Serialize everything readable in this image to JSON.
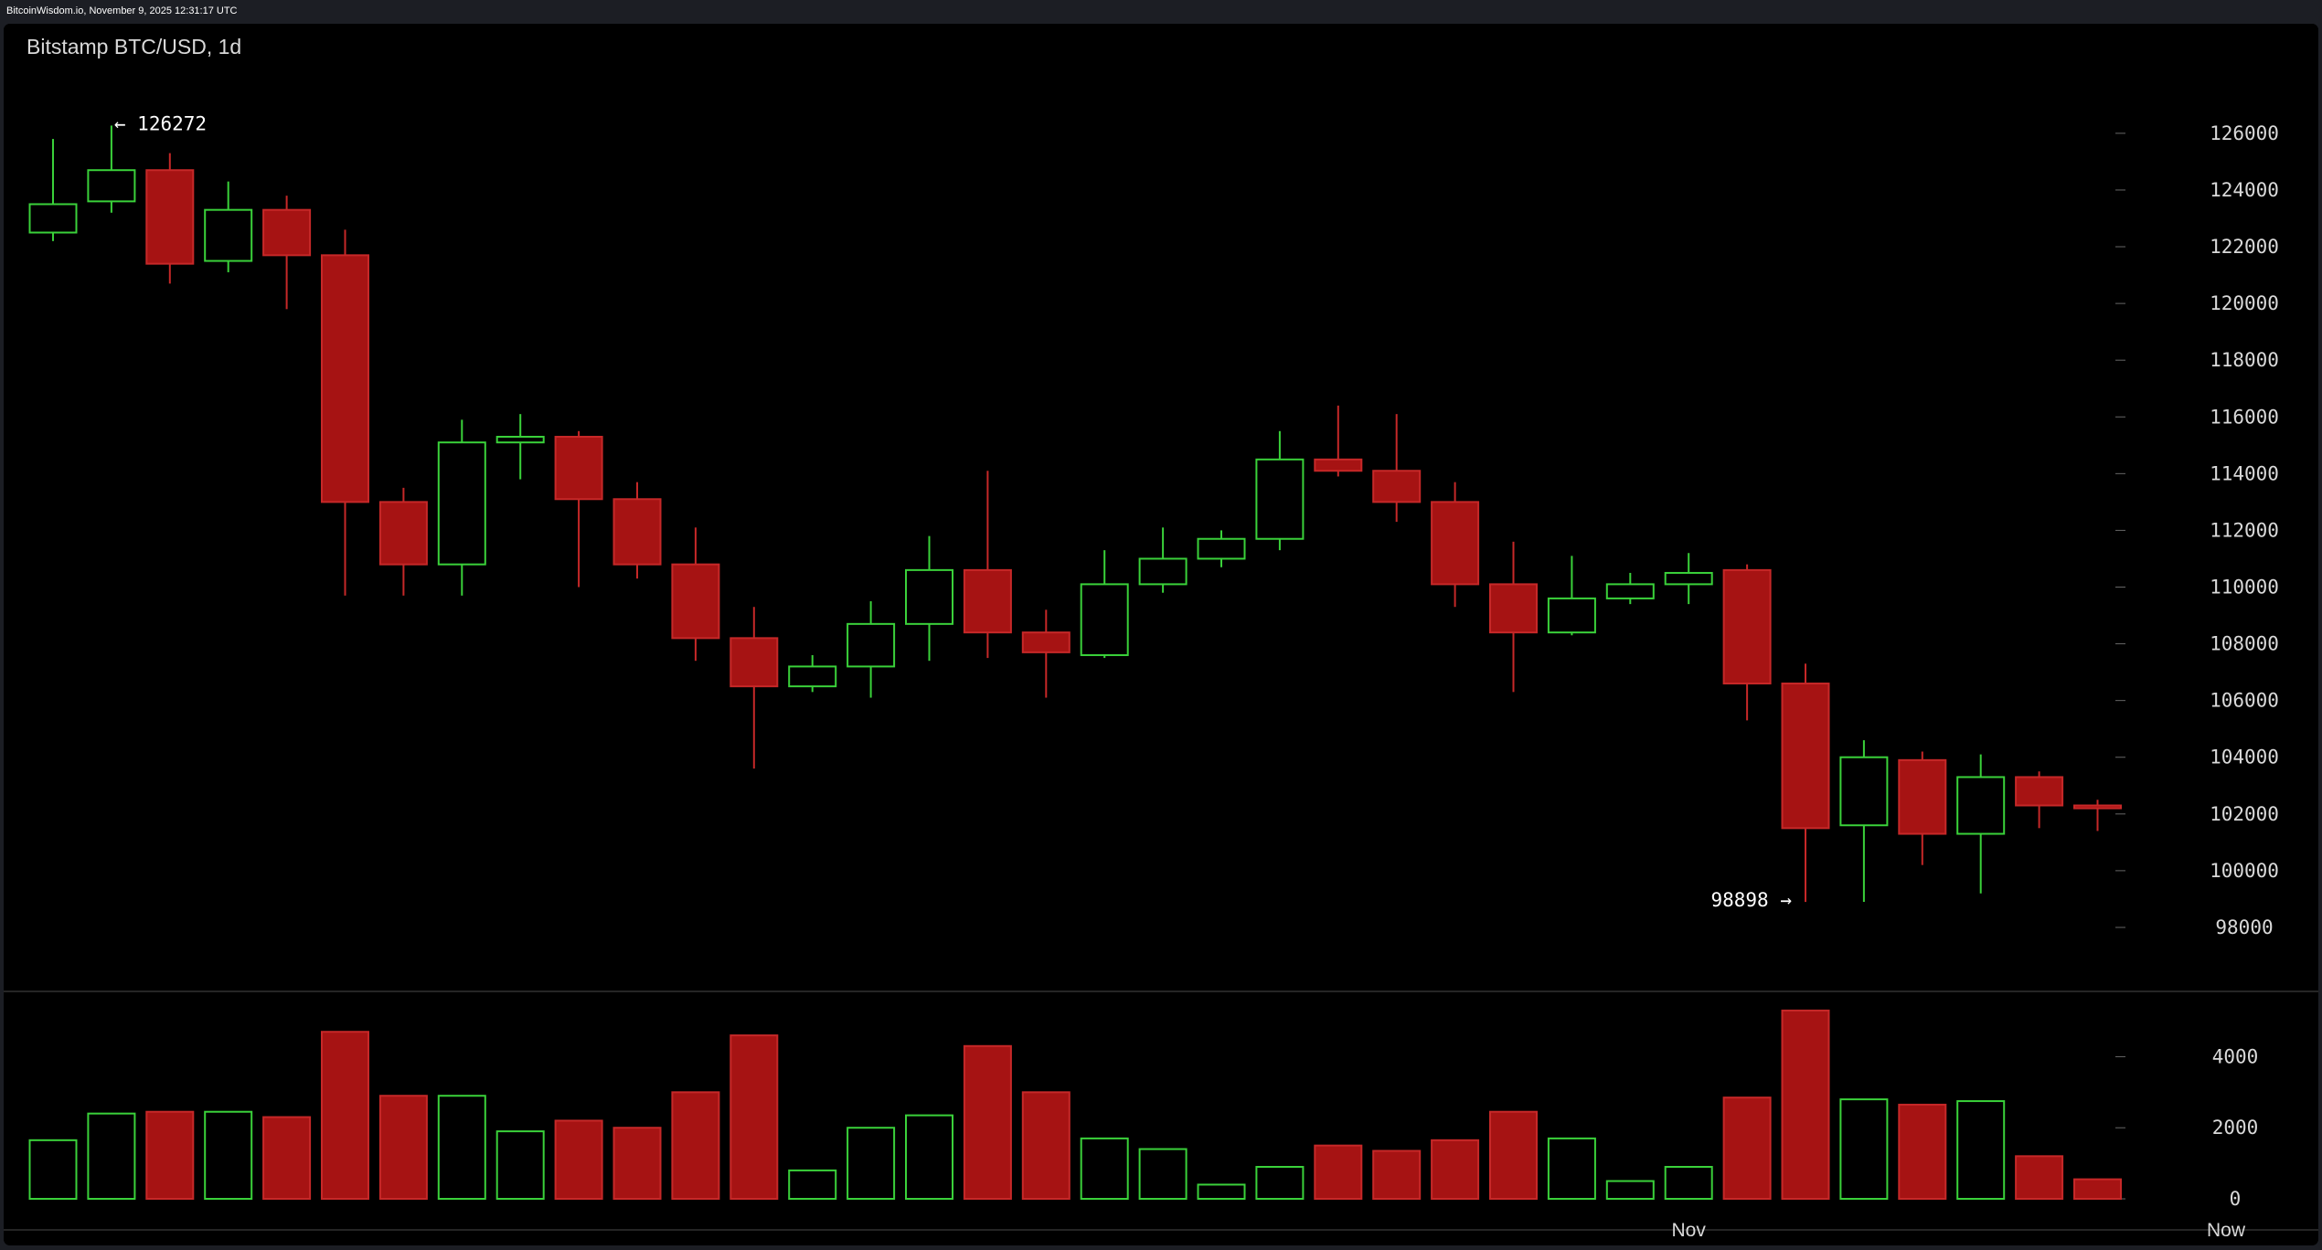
{
  "header": {
    "text": "BitcoinWisdom.io, November 9, 2025 12:31:17 UTC"
  },
  "chart": {
    "title": "Bitstamp BTC/USD, 1d",
    "max_label": "← 126272",
    "min_label": "98898 →",
    "colors": {
      "up": "#3ad13a",
      "down": "#a61313",
      "down_stroke": "#c62828",
      "text": "#d9d9d9",
      "background": "#000000"
    }
  },
  "chart_data": {
    "type": "candlestick",
    "title": "Bitstamp BTC/USD, 1d",
    "price_axis": {
      "ylim": [
        97000,
        127800
      ],
      "ticks": [
        126000,
        124000,
        122000,
        120000,
        118000,
        116000,
        114000,
        112000,
        110000,
        108000,
        106000,
        104000,
        102000,
        100000,
        98000
      ],
      "position": "right"
    },
    "volume_axis": {
      "ylim": [
        0,
        5400
      ],
      "ticks": [
        4000,
        2000,
        0
      ],
      "position": "right"
    },
    "x_labels": [
      {
        "index": 28,
        "label": "Nov"
      },
      {
        "index": 37,
        "label": "Now"
      }
    ],
    "annotations": [
      {
        "text": "← 126272",
        "value": 126272,
        "index": 1
      },
      {
        "text": "98898 →",
        "value": 98898,
        "index": 30
      }
    ],
    "candles": [
      {
        "open": 122500,
        "high": 125800,
        "low": 122200,
        "close": 123500,
        "volume": 1650
      },
      {
        "open": 123600,
        "high": 126272,
        "low": 123200,
        "close": 124700,
        "volume": 2400
      },
      {
        "open": 124700,
        "high": 125300,
        "low": 120700,
        "close": 121400,
        "volume": 2450
      },
      {
        "open": 121500,
        "high": 124300,
        "low": 121100,
        "close": 123300,
        "volume": 2450
      },
      {
        "open": 123300,
        "high": 123800,
        "low": 119800,
        "close": 121700,
        "volume": 2300
      },
      {
        "open": 121700,
        "high": 122600,
        "low": 109700,
        "close": 113000,
        "volume": 4700
      },
      {
        "open": 113000,
        "high": 113500,
        "low": 109700,
        "close": 110800,
        "volume": 2900
      },
      {
        "open": 110800,
        "high": 115900,
        "low": 109700,
        "close": 115100,
        "volume": 2900
      },
      {
        "open": 115100,
        "high": 116100,
        "low": 113800,
        "close": 115300,
        "volume": 1900
      },
      {
        "open": 115300,
        "high": 115500,
        "low": 110000,
        "close": 113100,
        "volume": 2200
      },
      {
        "open": 113100,
        "high": 113700,
        "low": 110300,
        "close": 110800,
        "volume": 2000
      },
      {
        "open": 110800,
        "high": 112100,
        "low": 107400,
        "close": 108200,
        "volume": 3000
      },
      {
        "open": 108200,
        "high": 109300,
        "low": 103600,
        "close": 106500,
        "volume": 4600
      },
      {
        "open": 106500,
        "high": 107600,
        "low": 106300,
        "close": 107200,
        "volume": 800
      },
      {
        "open": 107200,
        "high": 109500,
        "low": 106100,
        "close": 108700,
        "volume": 2000
      },
      {
        "open": 108700,
        "high": 111800,
        "low": 107400,
        "close": 110600,
        "volume": 2350
      },
      {
        "open": 110600,
        "high": 114100,
        "low": 107500,
        "close": 108400,
        "volume": 4300
      },
      {
        "open": 108400,
        "high": 109200,
        "low": 106100,
        "close": 107700,
        "volume": 3000
      },
      {
        "open": 107600,
        "high": 111300,
        "low": 107500,
        "close": 110100,
        "volume": 1700
      },
      {
        "open": 110100,
        "high": 112100,
        "low": 109800,
        "close": 111000,
        "volume": 1400
      },
      {
        "open": 111000,
        "high": 112000,
        "low": 110700,
        "close": 111700,
        "volume": 400
      },
      {
        "open": 111700,
        "high": 115500,
        "low": 111300,
        "close": 114500,
        "volume": 900
      },
      {
        "open": 114500,
        "high": 116400,
        "low": 113900,
        "close": 114100,
        "volume": 1500
      },
      {
        "open": 114100,
        "high": 116100,
        "low": 112300,
        "close": 113000,
        "volume": 1350
      },
      {
        "open": 113000,
        "high": 113700,
        "low": 109300,
        "close": 110100,
        "volume": 1650
      },
      {
        "open": 110100,
        "high": 111600,
        "low": 106300,
        "close": 108400,
        "volume": 2450
      },
      {
        "open": 108400,
        "high": 111100,
        "low": 108300,
        "close": 109600,
        "volume": 1700
      },
      {
        "open": 109600,
        "high": 110500,
        "low": 109400,
        "close": 110100,
        "volume": 500
      },
      {
        "open": 110100,
        "high": 111200,
        "low": 109400,
        "close": 110500,
        "volume": 900
      },
      {
        "open": 110600,
        "high": 110800,
        "low": 105300,
        "close": 106600,
        "volume": 2850
      },
      {
        "open": 106600,
        "high": 107300,
        "low": 98898,
        "close": 101500,
        "volume": 5300
      },
      {
        "open": 101600,
        "high": 104600,
        "low": 98900,
        "close": 104000,
        "volume": 2800
      },
      {
        "open": 103900,
        "high": 104200,
        "low": 100200,
        "close": 101300,
        "volume": 2650
      },
      {
        "open": 101300,
        "high": 104100,
        "low": 99200,
        "close": 103300,
        "volume": 2750
      },
      {
        "open": 103300,
        "high": 103500,
        "low": 101500,
        "close": 102300,
        "volume": 1200
      },
      {
        "open": 102300,
        "high": 102500,
        "low": 101400,
        "close": 102200,
        "volume": 550
      }
    ]
  }
}
